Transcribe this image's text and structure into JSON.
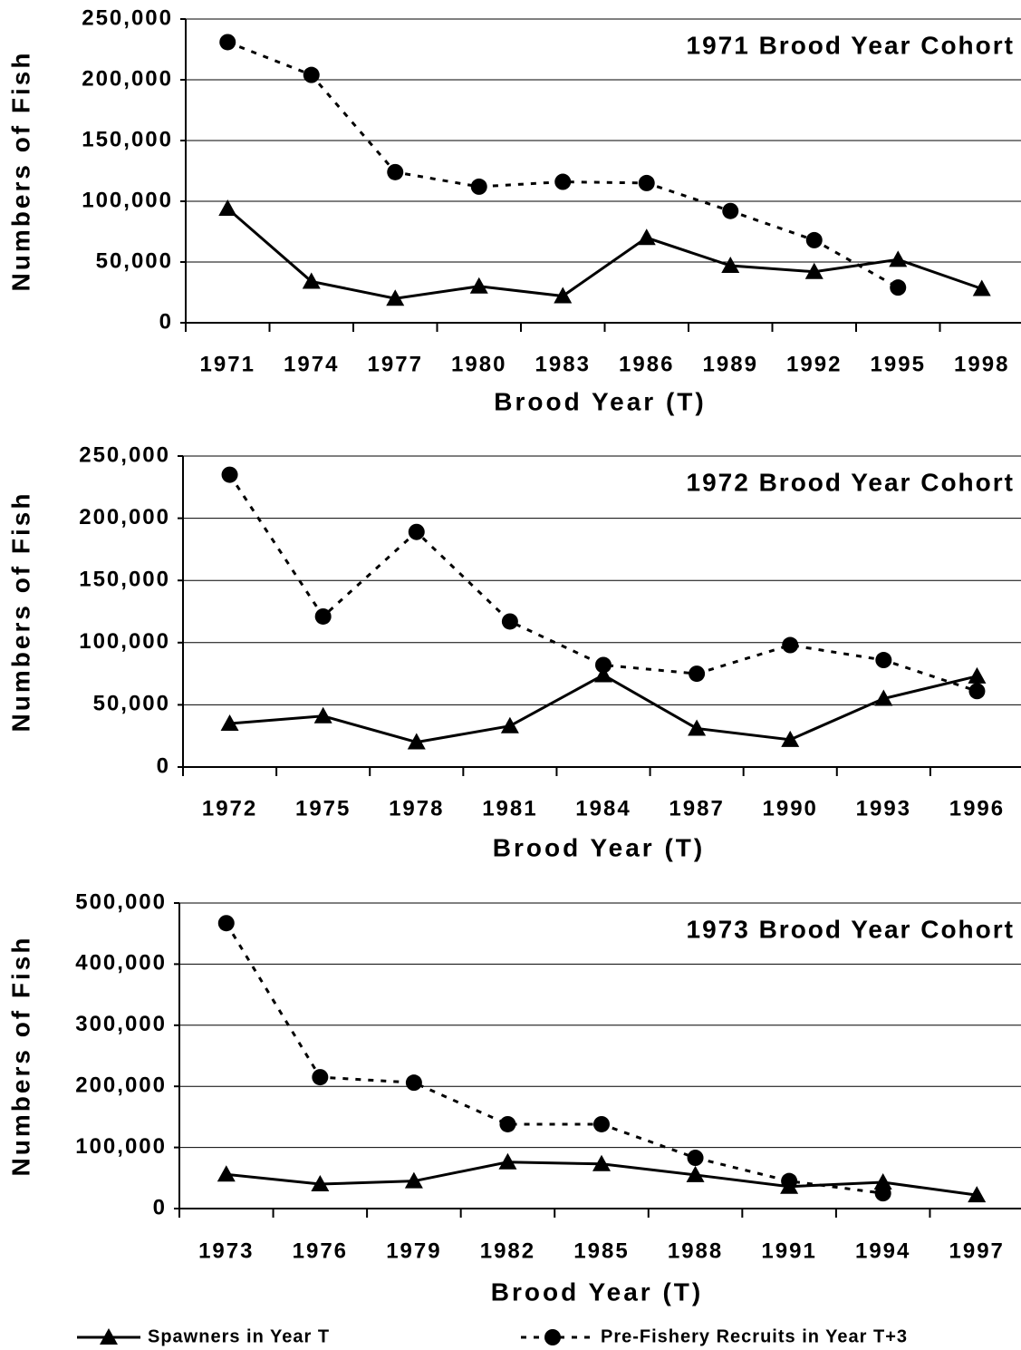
{
  "chart_data": [
    {
      "type": "line",
      "title": "1971 Brood Year Cohort",
      "xlabel": "Brood Year (T)",
      "ylabel": "Numbers of Fish",
      "categories": [
        "1971",
        "1974",
        "1977",
        "1980",
        "1983",
        "1986",
        "1989",
        "1992",
        "1995",
        "1998"
      ],
      "series": [
        {
          "name": "Spawners in Year T",
          "color": "#000000",
          "marker": "triangle",
          "dashed": false,
          "values": [
            94000,
            34000,
            20000,
            30000,
            22000,
            70000,
            47000,
            42000,
            52000,
            28000
          ]
        },
        {
          "name": "Pre-Fishery Recruits in Year T+3",
          "color": "#000000",
          "marker": "circle",
          "dashed": true,
          "values": [
            231000,
            204000,
            124000,
            112000,
            116000,
            115000,
            92000,
            68000,
            29000,
            null
          ]
        }
      ],
      "ylim": [
        0,
        250000
      ],
      "yticks": [
        0,
        {
          "value": 50000,
          "label": "50,000"
        },
        {
          "value": 100000,
          "label": "100,000"
        },
        {
          "value": 150000,
          "label": "150,000"
        },
        {
          "value": 200000,
          "label": "200,000"
        },
        {
          "value": 250000,
          "label": "250,000"
        }
      ],
      "grid": true
    },
    {
      "type": "line",
      "title": "1972 Brood Year Cohort",
      "xlabel": "Brood Year (T)",
      "ylabel": "Numbers of Fish",
      "categories": [
        "1972",
        "1975",
        "1978",
        "1981",
        "1984",
        "1987",
        "1990",
        "1993",
        "1996"
      ],
      "series": [
        {
          "color": "#000000",
          "marker": "triangle",
          "dashed": false,
          "values": [
            35000,
            41000,
            20000,
            33000,
            74000,
            31000,
            22000,
            55000,
            73000
          ]
        },
        {
          "color": "#000000",
          "marker": "circle",
          "dashed": true,
          "values": [
            235000,
            121000,
            189000,
            117000,
            82000,
            75000,
            98000,
            86000,
            61000
          ]
        }
      ],
      "ylim": [
        0,
        250000
      ],
      "yticks": [
        0,
        {
          "value": 50000,
          "label": "50,000"
        },
        {
          "value": 100000,
          "label": "100,000"
        },
        {
          "value": 150000,
          "label": "150,000"
        },
        {
          "value": 200000,
          "label": "200,000"
        },
        {
          "value": 250000,
          "label": "250,000"
        }
      ],
      "grid": true
    },
    {
      "type": "line",
      "title": "1973 Brood Year Cohort",
      "xlabel": "Brood Year (T)",
      "ylabel": "Numbers of Fish",
      "categories": [
        "1973",
        "1976",
        "1979",
        "1982",
        "1985",
        "1988",
        "1991",
        "1994",
        "1997"
      ],
      "series": [
        {
          "color": "#000000",
          "marker": "triangle",
          "dashed": false,
          "values": [
            56000,
            40000,
            45000,
            76000,
            73000,
            55000,
            36000,
            43000,
            22000
          ]
        },
        {
          "color": "#000000",
          "marker": "circle",
          "dashed": true,
          "values": [
            467000,
            215000,
            206000,
            138000,
            138000,
            83000,
            45000,
            25000,
            null
          ]
        }
      ],
      "ylim": [
        0,
        500000
      ],
      "yticks": [
        0,
        {
          "value": 100000,
          "label": "100,000"
        },
        {
          "value": 200000,
          "label": "200,000"
        },
        {
          "value": 300000,
          "label": "300,000"
        },
        {
          "value": 400000,
          "label": "400,000"
        },
        {
          "value": 500000,
          "label": "500,000"
        }
      ],
      "grid": true
    }
  ]
}
